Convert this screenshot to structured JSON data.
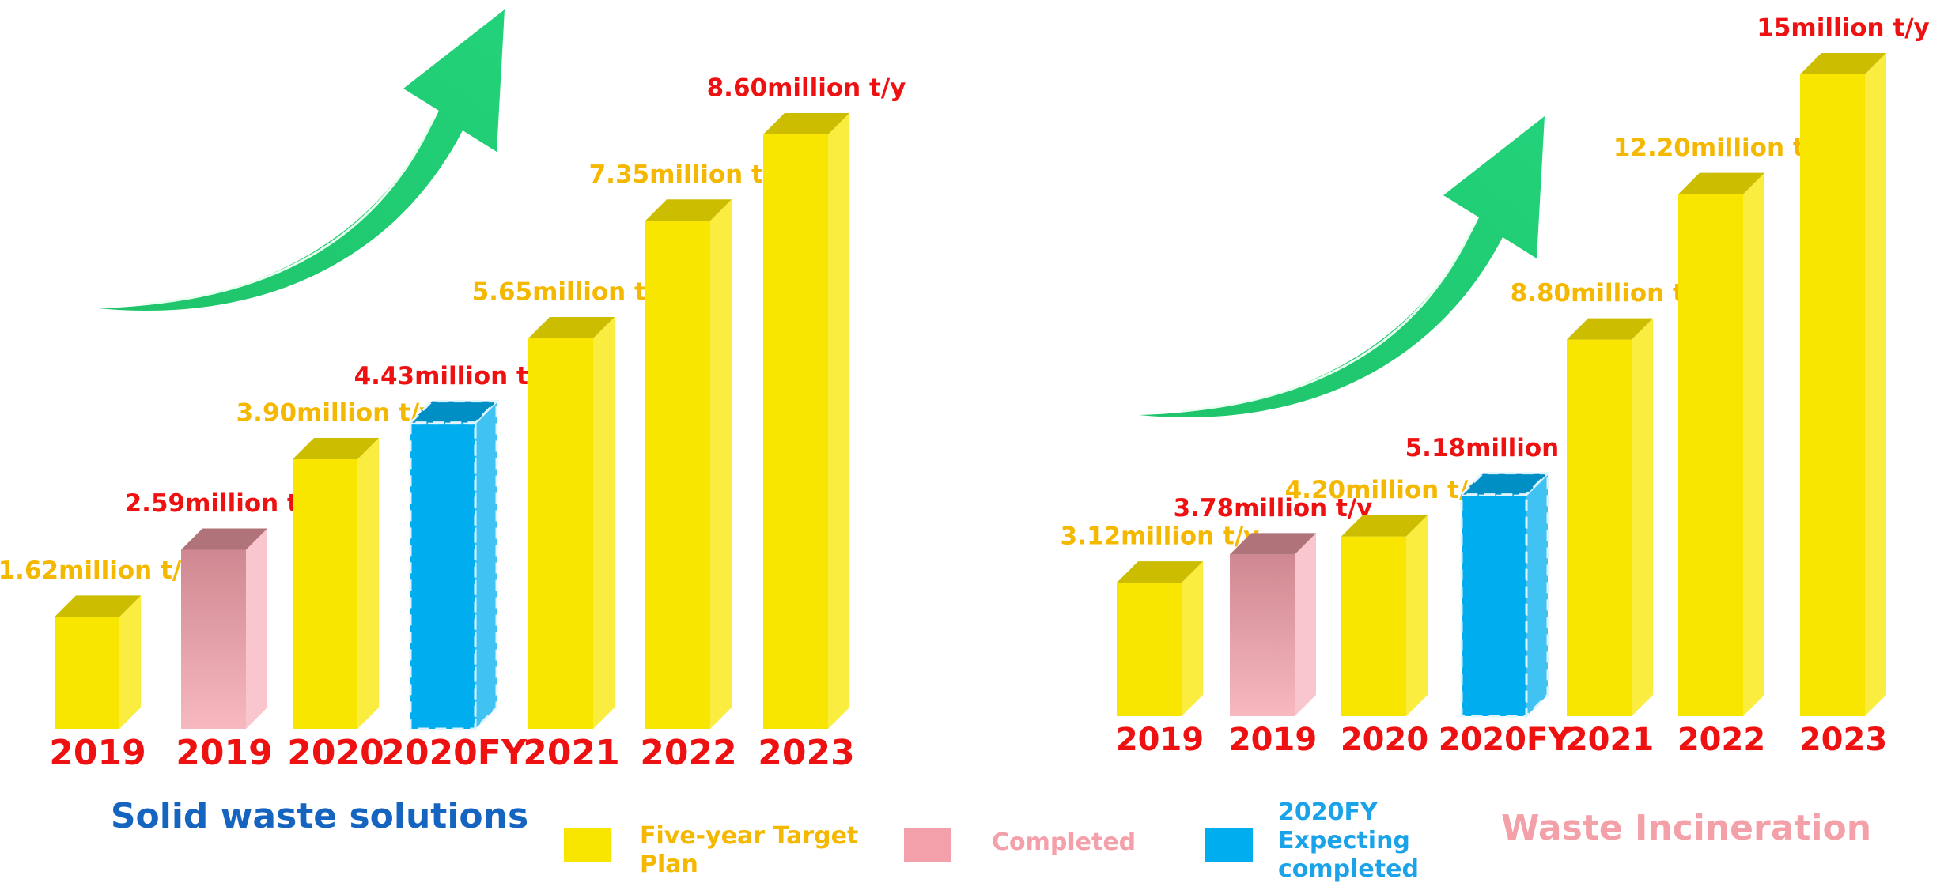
{
  "chart_data": [
    {
      "type": "bar3d",
      "title": "Solid waste solutions",
      "categories": [
        "2019",
        "2019",
        "2020",
        "2020FY",
        "2021",
        "2022",
        "2023"
      ],
      "values": [
        1.62,
        2.59,
        3.9,
        4.43,
        5.65,
        7.35,
        8.6
      ],
      "value_labels": [
        "1.62million t/y",
        "2.59million t/y",
        "3.90million t/y",
        "4.43million t/y",
        "5.65million t/y",
        "7.35million t/y",
        "8.60million t/y"
      ],
      "bar_series": [
        0,
        1,
        0,
        2,
        0,
        0,
        0
      ],
      "label_colors": [
        "#f5b800",
        "#ee1111",
        "#f5b800",
        "#ee1111",
        "#f5b800",
        "#f5b800",
        "#ee1111"
      ]
    },
    {
      "type": "bar3d",
      "title": "Waste Incineration",
      "categories": [
        "2019",
        "2019",
        "2020",
        "2020FY",
        "2021",
        "2022",
        "2023"
      ],
      "values": [
        3.12,
        3.78,
        4.2,
        5.18,
        8.8,
        12.2,
        15
      ],
      "value_labels": [
        "3.12million t/y",
        "3.78million t/y",
        "4.20million t/y",
        "5.18million t/y",
        "8.80million t/y",
        "12.20million t/y",
        "15million t/y"
      ],
      "bar_series": [
        0,
        1,
        0,
        2,
        0,
        0,
        0
      ],
      "label_colors": [
        "#f5b800",
        "#ee1111",
        "#f5b800",
        "#ee1111",
        "#f5b800",
        "#f5b800",
        "#ee1111"
      ]
    }
  ],
  "legend": [
    {
      "name": "Five-year Target Plan",
      "color": "#f9e600",
      "style": "solid",
      "text_color": "#f5b800"
    },
    {
      "name": "Completed",
      "color": "#f4a0aa",
      "style": "gradient",
      "text_color": "#f4a0aa"
    },
    {
      "name": "2020FY Expecting completed",
      "color": "#00aeef",
      "style": "dashed",
      "text_color": "#1aa3e8"
    }
  ]
}
